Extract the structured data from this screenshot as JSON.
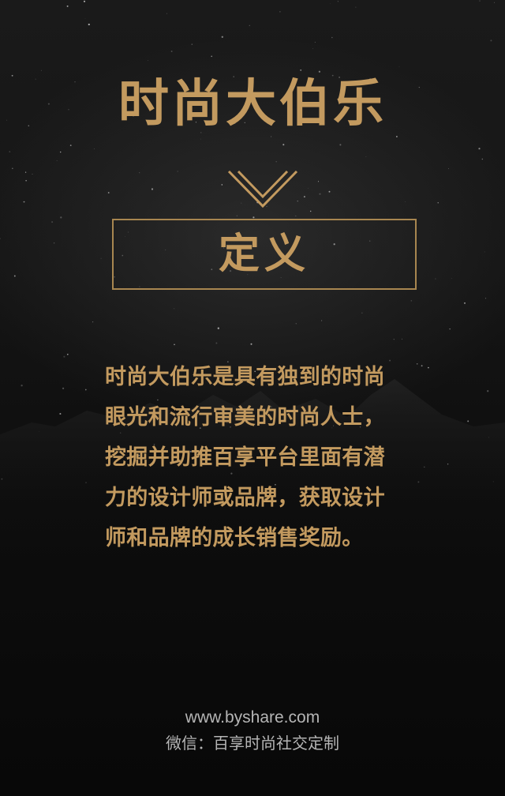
{
  "title": "时尚大伯乐",
  "chevron_icon": "double-chevron-down-icon",
  "definition_label": "定义",
  "description_lines": [
    "时尚大伯乐是具有独到的时尚",
    "眼光和流行审美的时尚人士，",
    "挖掘并助推百享平台里面有潜",
    "力的设计师或品牌，获取设计",
    "师和品牌的成长销售奖励。"
  ],
  "footer": {
    "website": "www.byshare.com",
    "wechat": "微信：百享时尚社交定制"
  },
  "colors": {
    "accent": "#c39a5f",
    "border": "#a88650",
    "footer_text": "#b5b5b5",
    "background": "#151515"
  }
}
